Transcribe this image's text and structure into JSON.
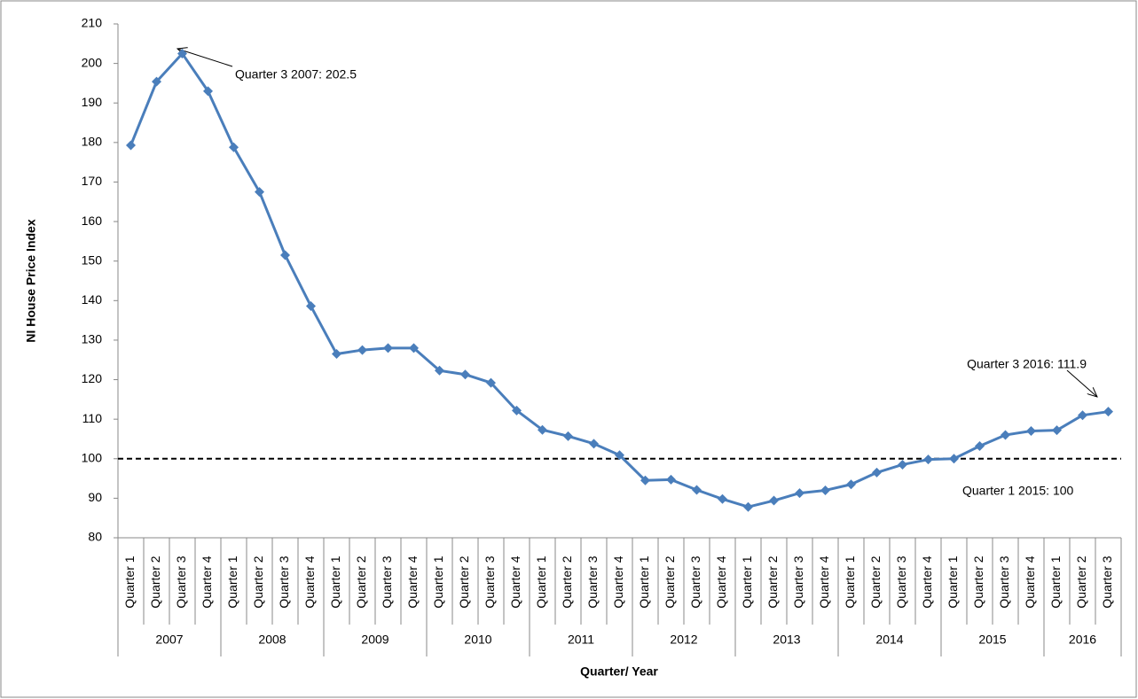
{
  "chart_data": {
    "type": "line",
    "y_axis_title": "NI House Price Index",
    "x_axis_title": "Quarter/ Year",
    "groups": [
      {
        "name": "2007",
        "categories": [
          "Quarter 1",
          "Quarter 2",
          "Quarter 3",
          "Quarter 4"
        ]
      },
      {
        "name": "2008",
        "categories": [
          "Quarter 1",
          "Quarter 2",
          "Quarter 3",
          "Quarter 4"
        ]
      },
      {
        "name": "2009",
        "categories": [
          "Quarter 1",
          "Quarter 2",
          "Quarter 3",
          "Quarter 4"
        ]
      },
      {
        "name": "2010",
        "categories": [
          "Quarter 1",
          "Quarter 2",
          "Quarter 3",
          "Quarter 4"
        ]
      },
      {
        "name": "2011",
        "categories": [
          "Quarter 1",
          "Quarter 2",
          "Quarter 3",
          "Quarter 4"
        ]
      },
      {
        "name": "2012",
        "categories": [
          "Quarter 1",
          "Quarter 2",
          "Quarter 3",
          "Quarter 4"
        ]
      },
      {
        "name": "2013",
        "categories": [
          "Quarter 1",
          "Quarter 2",
          "Quarter 3",
          "Quarter 4"
        ]
      },
      {
        "name": "2014",
        "categories": [
          "Quarter 1",
          "Quarter 2",
          "Quarter 3",
          "Quarter 4"
        ]
      },
      {
        "name": "2015",
        "categories": [
          "Quarter 1",
          "Quarter 2",
          "Quarter 3",
          "Quarter 4"
        ]
      },
      {
        "name": "2016",
        "categories": [
          "Quarter 1",
          "Quarter 2",
          "Quarter 3"
        ]
      }
    ],
    "series": [
      {
        "color": "#4a7ebb",
        "values": [
          179.3,
          195.4,
          202.5,
          193.0,
          178.8,
          167.5,
          151.5,
          138.6,
          126.5,
          127.5,
          128.0,
          128.0,
          122.3,
          121.3,
          119.2,
          112.2,
          107.3,
          105.7,
          103.8,
          100.9,
          94.5,
          94.7,
          92.1,
          89.8,
          87.8,
          89.4,
          91.3,
          92.0,
          93.5,
          96.5,
          98.5,
          99.8,
          100,
          103.2,
          106.0,
          107.0,
          107.2,
          111.0,
          111.9
        ]
      }
    ],
    "reference_line": 100,
    "annotations": [
      {
        "text": "Quarter 3 2007: 202.5"
      },
      {
        "text": "Quarter 3 2016: 111.9"
      },
      {
        "text": "Quarter 1 2015: 100"
      }
    ],
    "ylim": [
      80,
      210
    ],
    "yticks": [
      80,
      90,
      100,
      110,
      120,
      130,
      140,
      150,
      160,
      170,
      180,
      190,
      200,
      210
    ],
    "grid": false
  }
}
